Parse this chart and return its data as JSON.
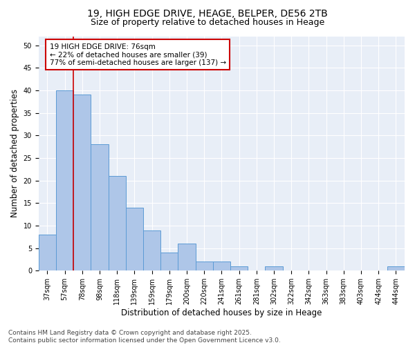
{
  "title1": "19, HIGH EDGE DRIVE, HEAGE, BELPER, DE56 2TB",
  "title2": "Size of property relative to detached houses in Heage",
  "xlabel": "Distribution of detached houses by size in Heage",
  "ylabel": "Number of detached properties",
  "categories": [
    "37sqm",
    "57sqm",
    "78sqm",
    "98sqm",
    "118sqm",
    "139sqm",
    "159sqm",
    "179sqm",
    "200sqm",
    "220sqm",
    "241sqm",
    "261sqm",
    "281sqm",
    "302sqm",
    "322sqm",
    "342sqm",
    "363sqm",
    "383sqm",
    "403sqm",
    "424sqm",
    "444sqm"
  ],
  "values": [
    8,
    40,
    39,
    28,
    21,
    14,
    9,
    4,
    6,
    2,
    2,
    1,
    0,
    1,
    0,
    0,
    0,
    0,
    0,
    0,
    1
  ],
  "bar_color": "#aec6e8",
  "bar_edge_color": "#5b9bd5",
  "vline_x": 1.5,
  "vline_color": "#cc0000",
  "annotation_text": "19 HIGH EDGE DRIVE: 76sqm\n← 22% of detached houses are smaller (39)\n77% of semi-detached houses are larger (137) →",
  "annotation_box_color": "#ffffff",
  "annotation_box_edge": "#cc0000",
  "ylim": [
    0,
    52
  ],
  "yticks": [
    0,
    5,
    10,
    15,
    20,
    25,
    30,
    35,
    40,
    45,
    50
  ],
  "bg_color": "#e8eef7",
  "footer": "Contains HM Land Registry data © Crown copyright and database right 2025.\nContains public sector information licensed under the Open Government Licence v3.0.",
  "title1_fontsize": 10,
  "title2_fontsize": 9,
  "xlabel_fontsize": 8.5,
  "ylabel_fontsize": 8.5,
  "annotation_fontsize": 7.5,
  "footer_fontsize": 6.5,
  "tick_fontsize": 7
}
